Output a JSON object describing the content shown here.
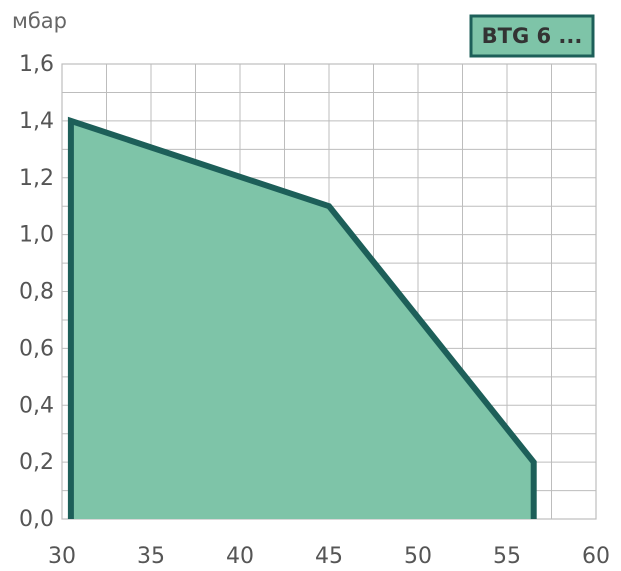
{
  "chart_data": {
    "type": "area",
    "title": "",
    "xlabel": "",
    "ylabel": "мбар",
    "xlim": [
      30,
      60
    ],
    "ylim": [
      0,
      1.6
    ],
    "x_ticks": [
      30,
      35,
      40,
      45,
      50,
      55,
      60
    ],
    "x_tick_labels": [
      "30",
      "35",
      "40",
      "45",
      "50",
      "55",
      "60"
    ],
    "y_ticks": [
      0.0,
      0.2,
      0.4,
      0.6,
      0.8,
      1.0,
      1.2,
      1.4,
      1.6
    ],
    "y_tick_labels": [
      "0,0",
      "0,2",
      "0,4",
      "0,6",
      "0,8",
      "1,0",
      "1,2",
      "1,4",
      "1,6"
    ],
    "grid": true,
    "legend_position": "top-right",
    "series": [
      {
        "name": "BTG 6 ...",
        "points": [
          [
            30.5,
            0.0
          ],
          [
            30.5,
            1.4
          ],
          [
            45.0,
            1.1
          ],
          [
            56.5,
            0.2
          ],
          [
            56.5,
            0.0
          ]
        ],
        "fill_color": "#7ec4a8",
        "line_color": "#1d5f59"
      }
    ]
  },
  "legend": {
    "label": "BTG 6 ...",
    "fill_color": "#7ec4a8",
    "border_color": "#1d5f59"
  },
  "colors": {
    "grid": "#bdbdbd",
    "text": "#555555"
  }
}
